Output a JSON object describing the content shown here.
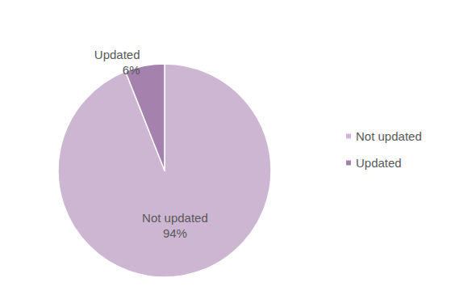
{
  "chart_data": {
    "type": "pie",
    "categories": [
      "Not updated",
      "Updated"
    ],
    "values": [
      94,
      6
    ],
    "value_labels": [
      "94%",
      "6%"
    ],
    "colors": [
      "#cdb6d2",
      "#a482ad"
    ],
    "legend": "right",
    "data_labels": true
  }
}
